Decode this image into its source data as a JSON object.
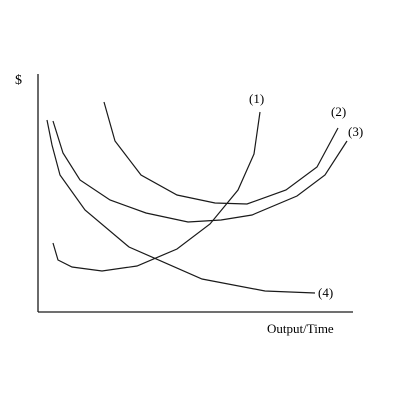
{
  "diagram": {
    "y_axis_label": "$",
    "x_axis_label": "Output/Time",
    "curve_labels": [
      "(1)",
      "(2)",
      "(3)",
      "(4)"
    ]
  },
  "colors": {
    "line": "#1a1a1a",
    "background": "#ffffff"
  }
}
